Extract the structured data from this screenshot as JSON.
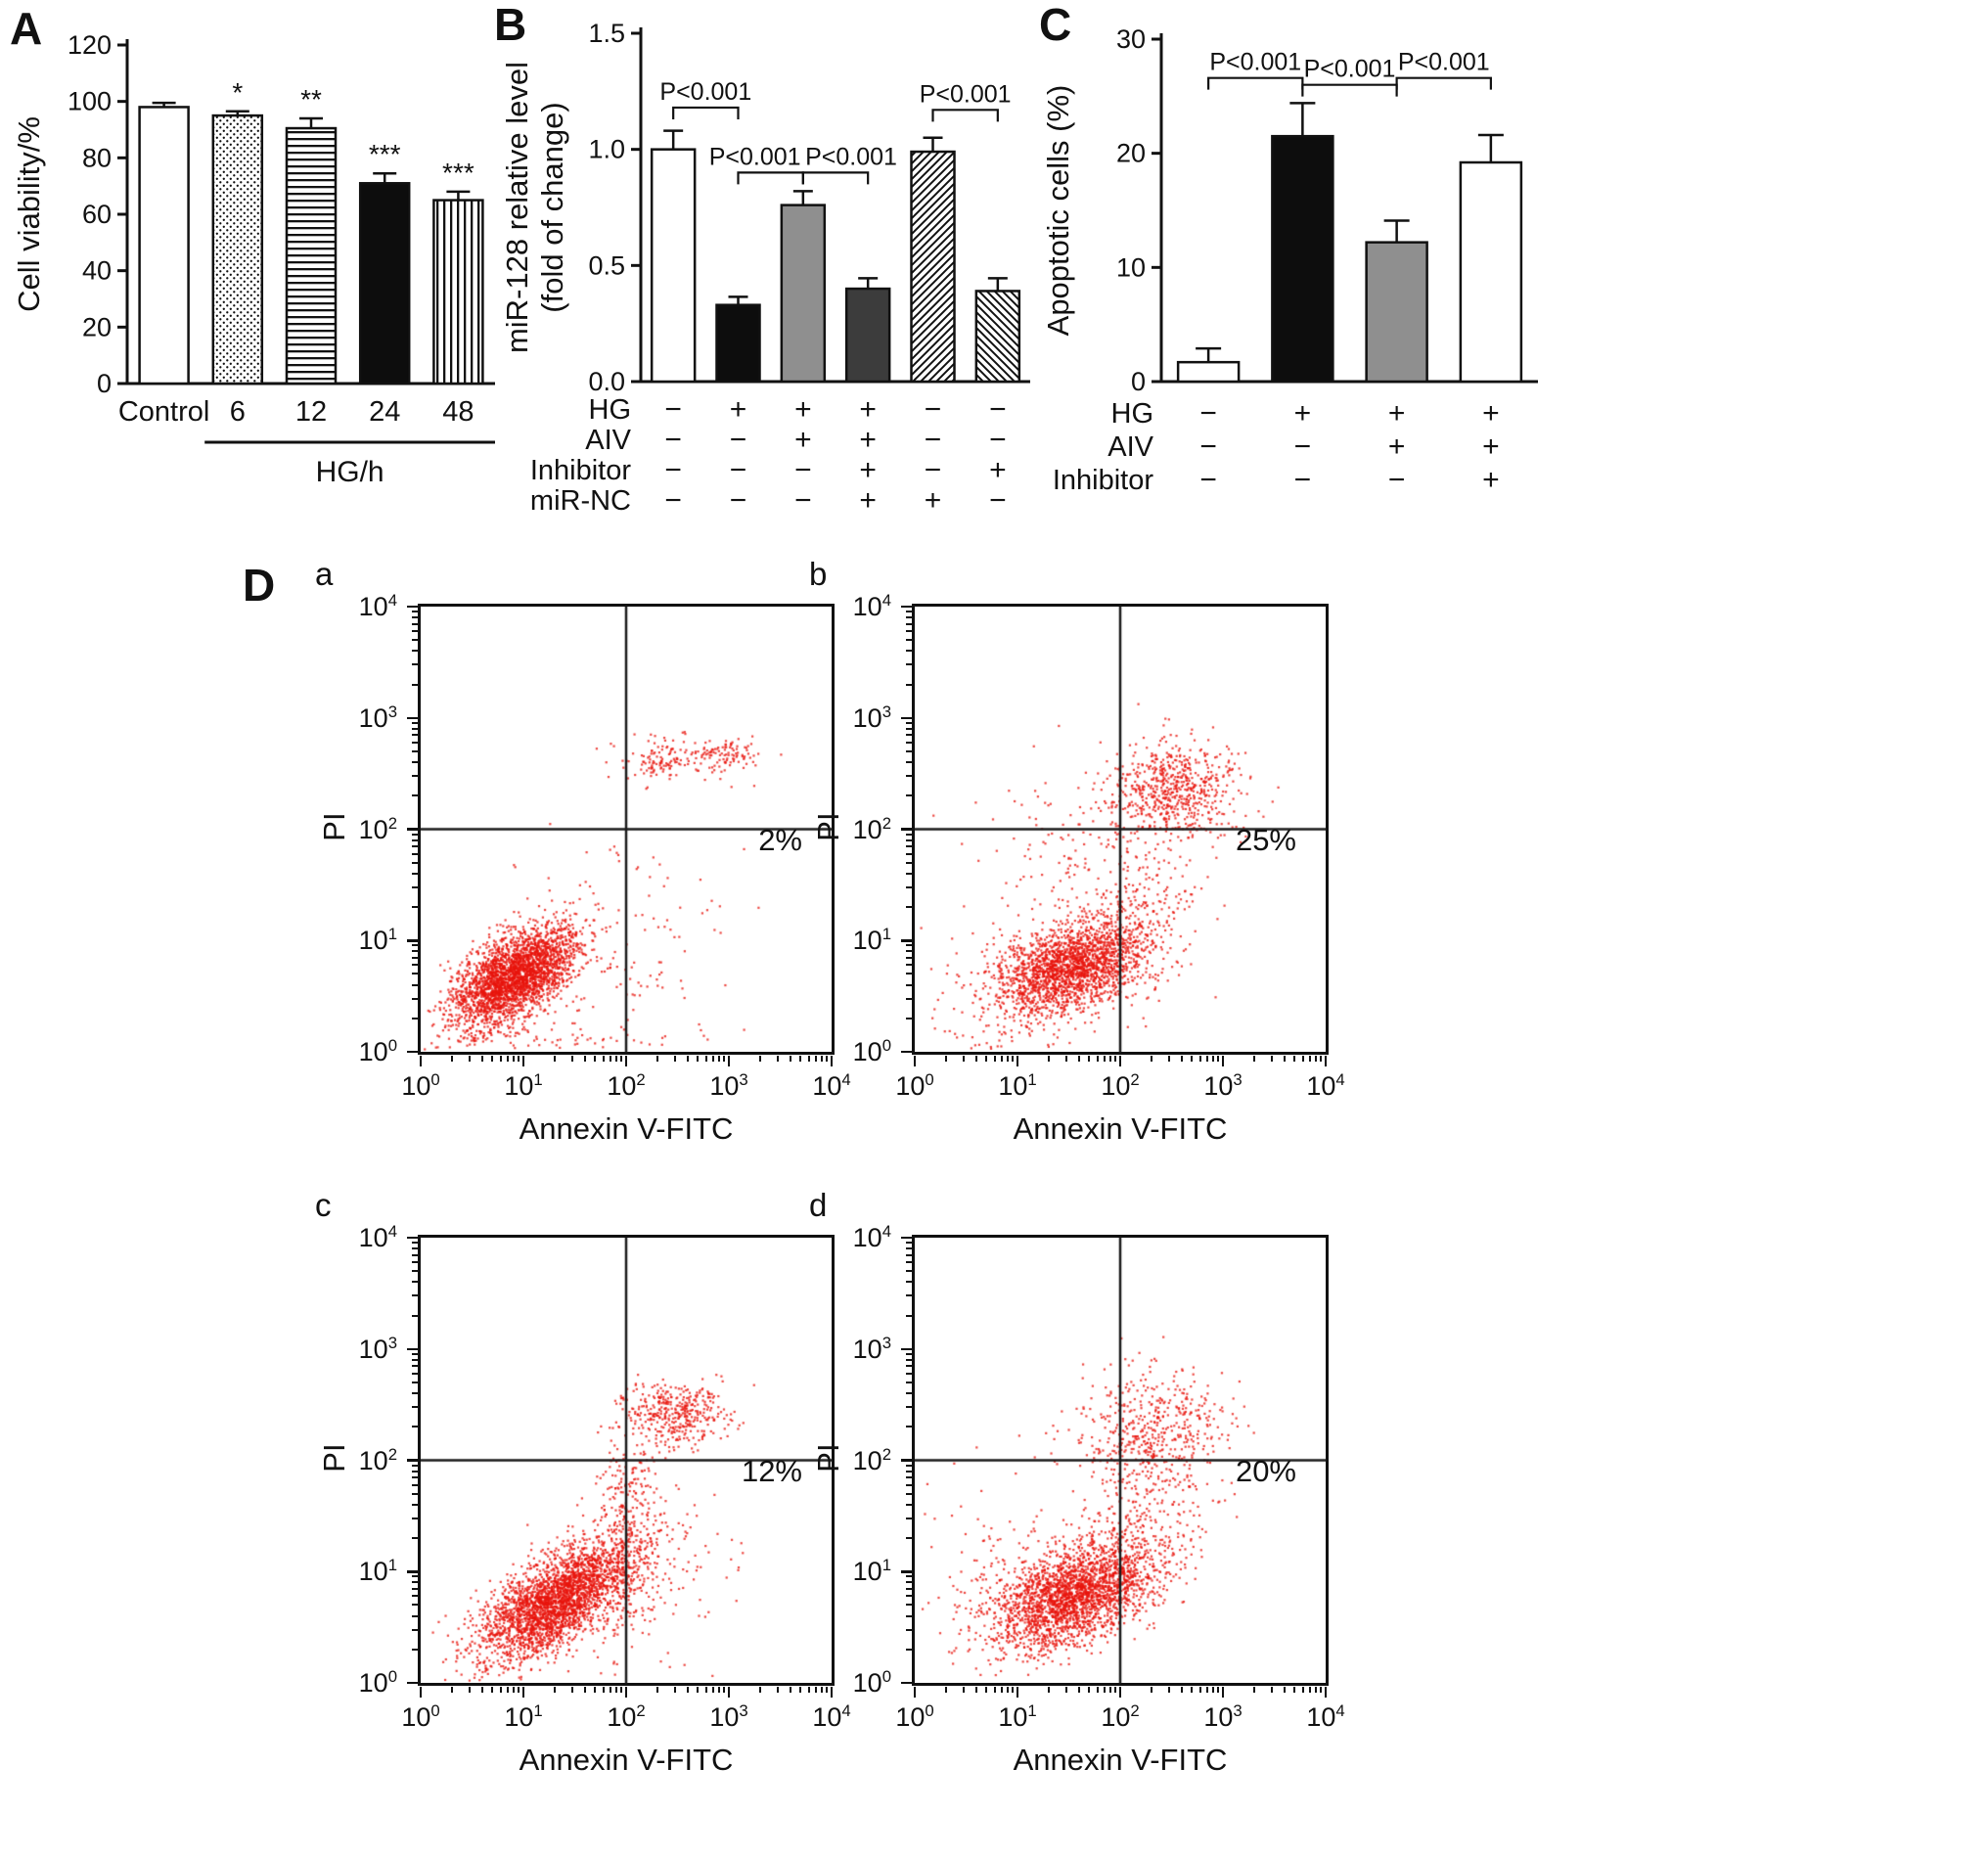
{
  "chart_data": [
    {
      "panel_label": "A",
      "type": "bar",
      "ylabel": "Cell viability/%",
      "ylim": [
        0,
        120
      ],
      "ytick_values": [
        0,
        20,
        40,
        60,
        80,
        100,
        120
      ],
      "ytick_labels": [
        "0",
        "20",
        "40",
        "60",
        "80",
        "100",
        "120"
      ],
      "categories": [
        "Control",
        "6",
        "12",
        "24",
        "48"
      ],
      "values": [
        98,
        95,
        90.5,
        71,
        65
      ],
      "errors": [
        1.5,
        1.5,
        3.5,
        3.5,
        3
      ],
      "sig_labels": [
        "",
        "*",
        "**",
        "***",
        "***"
      ],
      "bar_styles": [
        "white",
        "dots",
        "hlines",
        "black",
        "vlines"
      ],
      "group_label": "HG/h",
      "group_span": [
        1,
        4
      ]
    },
    {
      "panel_label": "B",
      "type": "bar",
      "ylabel_lines": [
        "miR-128 relative level",
        "(fold of change)"
      ],
      "ylim": [
        0,
        1.5
      ],
      "ytick_values": [
        0,
        0.5,
        1.0,
        1.5
      ],
      "ytick_labels": [
        "0.0",
        "0.5",
        "1.0",
        "1.5"
      ],
      "values": [
        1.0,
        0.33,
        0.76,
        0.4,
        0.99,
        0.39
      ],
      "errors": [
        0.08,
        0.035,
        0.06,
        0.045,
        0.06,
        0.055
      ],
      "bar_styles": [
        "white",
        "black",
        "gray",
        "darkgray",
        "hatchA",
        "hatchB"
      ],
      "condition_rows": [
        {
          "label": "HG",
          "values": [
            "−",
            "+",
            "+",
            "+",
            "−",
            "−"
          ]
        },
        {
          "label": "AIV",
          "values": [
            "−",
            "−",
            "+",
            "+",
            "−",
            "−"
          ]
        },
        {
          "label": "Inhibitor",
          "values": [
            "−",
            "−",
            "−",
            "+",
            "−",
            "+"
          ]
        },
        {
          "label": "miR-NC",
          "values": [
            "−",
            "−",
            "−",
            "+",
            "+",
            "−"
          ]
        }
      ],
      "comparisons": [
        {
          "label": "P<0.001",
          "from": 0,
          "to": 1,
          "y": 1.18
        },
        {
          "label": "P<0.001",
          "from": 1,
          "to": 2,
          "y": 0.9
        },
        {
          "label": "P<0.001",
          "from": 2,
          "to": 3,
          "y": 0.9
        },
        {
          "label": "P<0.001",
          "from": 4,
          "to": 5,
          "y": 1.17
        }
      ]
    },
    {
      "panel_label": "C",
      "type": "bar",
      "ylabel": "Apoptotic cells (%)",
      "ylim": [
        0,
        30
      ],
      "ytick_values": [
        0,
        10,
        20,
        30
      ],
      "ytick_labels": [
        "0",
        "10",
        "20",
        "30"
      ],
      "values": [
        1.7,
        21.5,
        12.2,
        19.2
      ],
      "errors": [
        1.2,
        2.9,
        1.9,
        2.4
      ],
      "bar_styles": [
        "white",
        "black",
        "gray",
        "white"
      ],
      "condition_rows": [
        {
          "label": "HG",
          "values": [
            "−",
            "+",
            "+",
            "+"
          ]
        },
        {
          "label": "AIV",
          "values": [
            "−",
            "−",
            "+",
            "+"
          ]
        },
        {
          "label": "Inhibitor",
          "values": [
            "−",
            "−",
            "−",
            "+"
          ]
        }
      ],
      "comparisons": [
        {
          "label": "P<0.001",
          "from": 0,
          "to": 1,
          "y": 26.6
        },
        {
          "label": "P<0.001",
          "from": 1,
          "to": 2,
          "y": 26.0
        },
        {
          "label": "P<0.001",
          "from": 2,
          "to": 3,
          "y": 26.6
        }
      ]
    },
    {
      "panel_label": "D",
      "type": "scatter",
      "xlabel": "Annexin V-FITC",
      "ylabel": "PI",
      "tick_base": "10",
      "log_decades": [
        0,
        1,
        2,
        3,
        4
      ],
      "quadrant_log": 2,
      "dot_color": "#e8150d",
      "subplots": [
        {
          "label": "a",
          "percent": "2%",
          "clusters": [
            {
              "cx": 0.92,
              "cy": 0.68,
              "sx": 0.3,
              "sy": 0.22,
              "rho": 0.55,
              "n": 2800
            },
            {
              "cx": 1.95,
              "cy": 0.95,
              "sx": 0.5,
              "sy": 0.5,
              "rho": 0.1,
              "n": 120
            },
            {
              "cx": 2.35,
              "cy": 2.63,
              "sx": 0.2,
              "sy": 0.1,
              "rho": 0.0,
              "n": 130
            },
            {
              "cx": 2.98,
              "cy": 2.66,
              "sx": 0.17,
              "sy": 0.09,
              "rho": 0.0,
              "n": 100
            },
            {
              "cx": 1.3,
              "cy": 0.1,
              "sx": 0.7,
              "sy": 0.06,
              "rho": 0.0,
              "n": 70
            }
          ]
        },
        {
          "label": "b",
          "percent": "25%",
          "clusters": [
            {
              "cx": 1.5,
              "cy": 0.75,
              "sx": 0.33,
              "sy": 0.2,
              "rho": 0.35,
              "n": 1700
            },
            {
              "cx": 2.05,
              "cy": 1.05,
              "sx": 0.35,
              "sy": 0.3,
              "rho": 0.3,
              "n": 350
            },
            {
              "cx": 2.5,
              "cy": 2.35,
              "sx": 0.33,
              "sy": 0.22,
              "rho": 0.1,
              "n": 650
            },
            {
              "cx": 1.7,
              "cy": 1.7,
              "sx": 0.55,
              "sy": 0.45,
              "rho": 0.0,
              "n": 180
            },
            {
              "cx": 1.15,
              "cy": 0.55,
              "sx": 0.45,
              "sy": 0.28,
              "rho": 0.2,
              "n": 300
            }
          ]
        },
        {
          "label": "c",
          "percent": "12%",
          "clusters": [
            {
              "cx": 1.3,
              "cy": 0.72,
              "sx": 0.36,
              "sy": 0.26,
              "rho": 0.65,
              "n": 2800
            },
            {
              "cx": 2.0,
              "cy": 1.4,
              "sx": 0.17,
              "sy": 0.55,
              "rho": 0.2,
              "n": 350
            },
            {
              "cx": 2.5,
              "cy": 2.42,
              "sx": 0.26,
              "sy": 0.14,
              "rho": 0.0,
              "n": 380
            },
            {
              "cx": 2.25,
              "cy": 0.95,
              "sx": 0.4,
              "sy": 0.4,
              "rho": 0.2,
              "n": 150
            }
          ]
        },
        {
          "label": "d",
          "percent": "20%",
          "clusters": [
            {
              "cx": 1.55,
              "cy": 0.78,
              "sx": 0.38,
              "sy": 0.24,
              "rho": 0.45,
              "n": 2400
            },
            {
              "cx": 2.3,
              "cy": 2.25,
              "sx": 0.38,
              "sy": 0.28,
              "rho": 0.1,
              "n": 500
            },
            {
              "cx": 2.15,
              "cy": 1.35,
              "sx": 0.35,
              "sy": 0.4,
              "rho": 0.2,
              "n": 280
            },
            {
              "cx": 0.85,
              "cy": 0.95,
              "sx": 0.35,
              "sy": 0.45,
              "rho": 0.0,
              "n": 130
            }
          ]
        }
      ]
    }
  ]
}
